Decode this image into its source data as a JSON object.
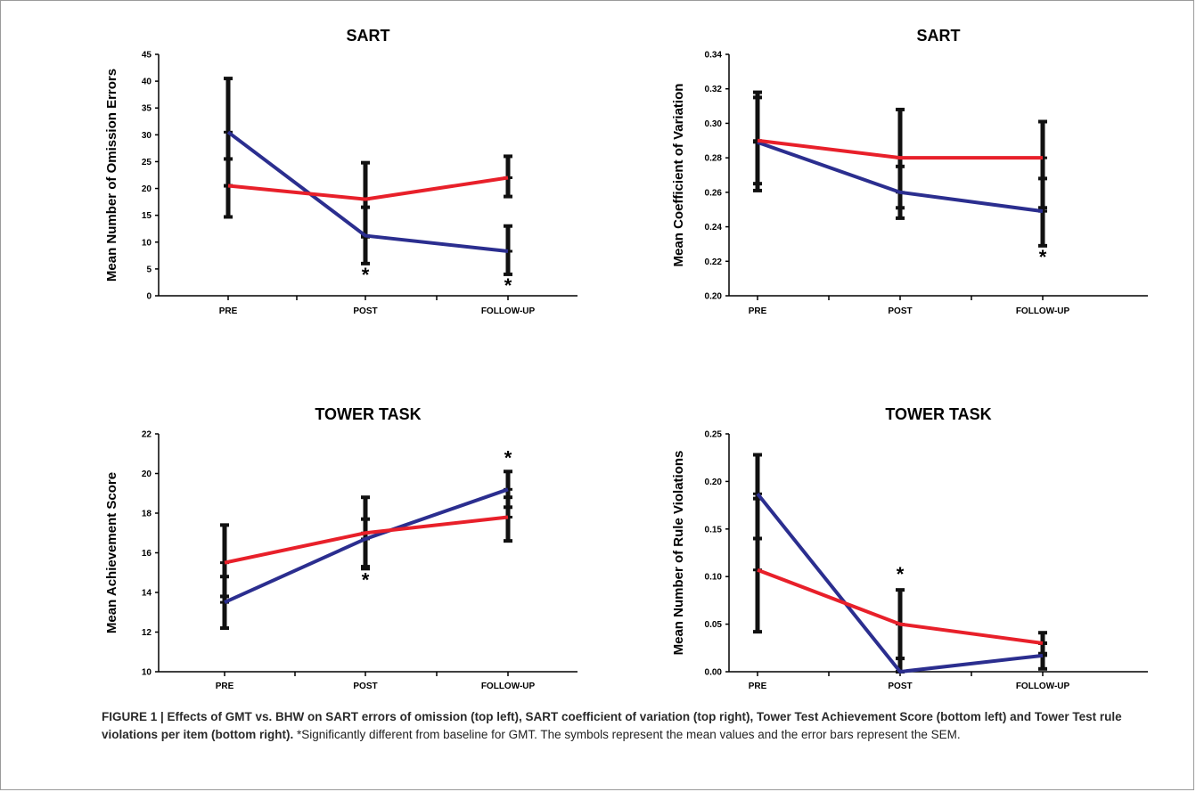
{
  "series_colors": {
    "GMT": "#2b2e8f",
    "BHW": "#e8202a"
  },
  "chart_data": [
    {
      "type": "line",
      "title": "SART",
      "ylabel": "Mean Number of Omission Errors",
      "xlabel": "",
      "categories": [
        "PRE",
        "POST",
        "FOLLOW-UP"
      ],
      "ylim": [
        0,
        45
      ],
      "yticks": [
        0,
        5,
        10,
        15,
        20,
        25,
        30,
        35,
        40,
        45
      ],
      "ytick_labels": [
        "0",
        "5",
        "10",
        "15",
        "20",
        "25",
        "30",
        "35",
        "40",
        "45"
      ],
      "series": [
        {
          "key": "GMT",
          "values": [
            30.5,
            11.2,
            8.3
          ],
          "err_low": [
            20.5,
            6.0,
            4.0
          ],
          "err_high": [
            40.5,
            16.5,
            13.0
          ]
        },
        {
          "key": "BHW",
          "values": [
            20.5,
            18.0,
            22.0
          ],
          "err_low": [
            14.7,
            11.0,
            18.5
          ],
          "err_high": [
            25.5,
            24.8,
            26.0
          ]
        }
      ],
      "significant": [
        {
          "category": 1,
          "label": "*"
        },
        {
          "category": 2,
          "label": "*"
        }
      ]
    },
    {
      "type": "line",
      "title": "SART",
      "ylabel": "Mean Coefficient of Variation",
      "xlabel": "",
      "categories": [
        "PRE",
        "POST",
        "FOLLOW-UP"
      ],
      "ylim": [
        0.2,
        0.34
      ],
      "yticks": [
        0.2,
        0.22,
        0.24,
        0.26,
        0.28,
        0.3,
        0.32,
        0.34
      ],
      "ytick_labels": [
        "0.20",
        "0.22",
        "0.24",
        "0.26",
        "0.28",
        "0.30",
        "0.32",
        "0.34"
      ],
      "series": [
        {
          "key": "GMT",
          "values": [
            0.289,
            0.26,
            0.249
          ],
          "err_low": [
            0.261,
            0.245,
            0.229
          ],
          "err_high": [
            0.315,
            0.275,
            0.268
          ]
        },
        {
          "key": "BHW",
          "values": [
            0.29,
            0.28,
            0.28
          ],
          "err_low": [
            0.265,
            0.251,
            0.251
          ],
          "err_high": [
            0.318,
            0.308,
            0.301
          ]
        }
      ],
      "significant": [
        {
          "category": 2,
          "label": "*"
        }
      ]
    },
    {
      "type": "line",
      "title": "TOWER TASK",
      "ylabel": "Mean Achievement Score",
      "xlabel": "",
      "categories": [
        "PRE",
        "POST",
        "FOLLOW-UP"
      ],
      "ylim": [
        10,
        22
      ],
      "yticks": [
        10,
        12,
        14,
        16,
        18,
        20,
        22
      ],
      "ytick_labels": [
        "10",
        "12",
        "14",
        "16",
        "18",
        "20",
        "22"
      ],
      "series": [
        {
          "key": "GMT",
          "values": [
            13.5,
            16.7,
            19.2
          ],
          "err_low": [
            12.2,
            15.2,
            18.3
          ],
          "err_high": [
            14.8,
            17.7,
            20.1
          ]
        },
        {
          "key": "BHW",
          "values": [
            15.5,
            17.0,
            17.8
          ],
          "err_low": [
            13.8,
            15.3,
            16.6
          ],
          "err_high": [
            17.4,
            18.8,
            18.8
          ]
        }
      ],
      "significant": [
        {
          "category": 1,
          "label": "*"
        },
        {
          "category": 2,
          "label": "*"
        }
      ]
    },
    {
      "type": "line",
      "title": "TOWER TASK",
      "ylabel": "Mean Number of Rule Violations",
      "xlabel": "",
      "categories": [
        "PRE",
        "POST",
        "FOLLOW-UP"
      ],
      "ylim": [
        0,
        0.25
      ],
      "yticks": [
        0,
        0.05,
        0.1,
        0.15,
        0.2,
        0.25
      ],
      "ytick_labels": [
        "0.00",
        "0.05",
        "0.10",
        "0.15",
        "0.20",
        "0.25"
      ],
      "series": [
        {
          "key": "GMT",
          "values": [
            0.187,
            0.0,
            0.017
          ],
          "err_low": [
            0.14,
            0.0,
            0.003
          ],
          "err_high": [
            0.228,
            0.014,
            0.03
          ]
        },
        {
          "key": "BHW",
          "values": [
            0.107,
            0.05,
            0.03
          ],
          "err_low": [
            0.042,
            0.014,
            0.019
          ],
          "err_high": [
            0.182,
            0.086,
            0.041
          ]
        }
      ],
      "significant": [
        {
          "category": 1,
          "label": "*"
        }
      ]
    }
  ],
  "caption": {
    "lead": "FIGURE 1 | Effects of GMT vs. BHW on SART errors of omission (top left), SART coefficient of variation (top right), Tower Test Achievement Score (bottom left) and Tower Test rule violations per item (bottom right).",
    "body": "*Significantly different from baseline for GMT. The symbols represent the mean values and the error bars represent the SEM."
  }
}
